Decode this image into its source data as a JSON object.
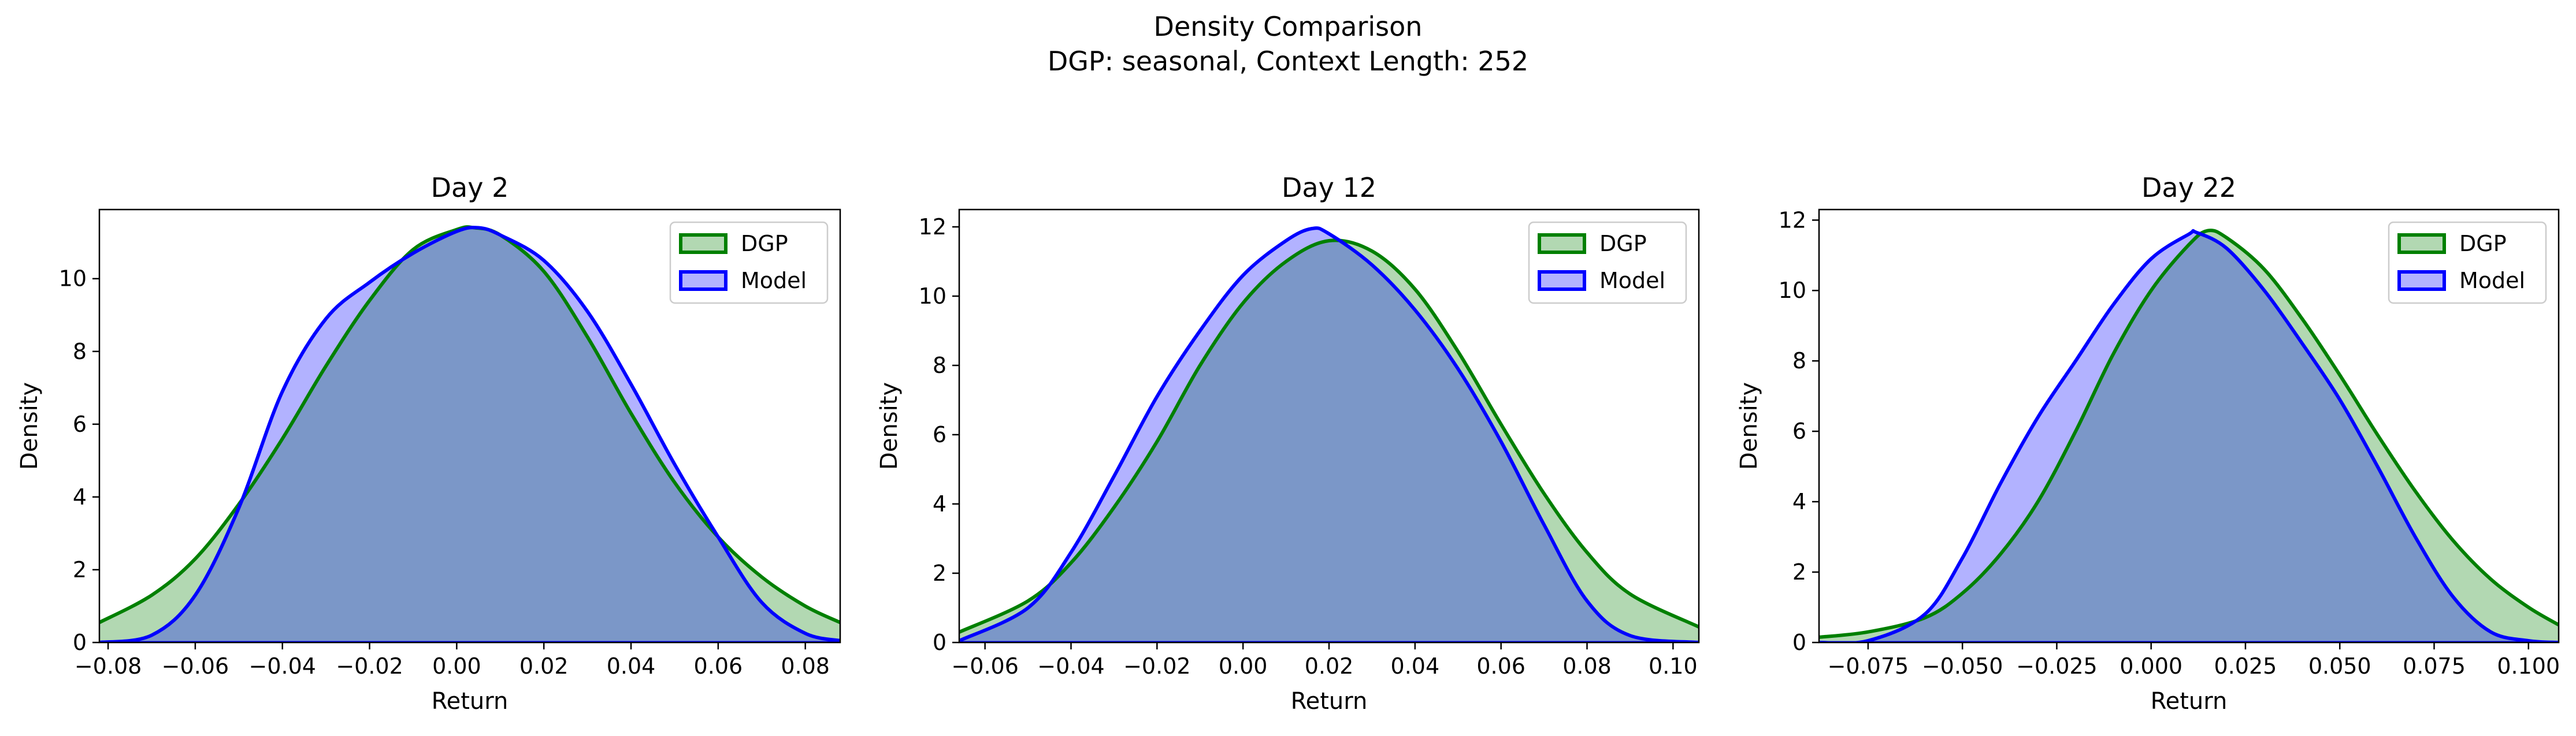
{
  "figure": {
    "title": "Density Comparison",
    "subtitle": "DGP: seasonal, Context Length: 252"
  },
  "colors": {
    "dgp_line": "#008000",
    "dgp_fill": "#b2d8b2",
    "model_line": "#0000ff",
    "model_fill": "#b2b2ff",
    "overlap_fill": "#7b97c8",
    "overlap_edge": "#0f4f6e"
  },
  "chart_data": [
    {
      "type": "area",
      "title": "Day 2",
      "xlabel": "Return",
      "ylabel": "Density",
      "xlim": [
        -0.082,
        0.088
      ],
      "ylim": [
        0,
        11.9
      ],
      "xticks": [
        -0.08,
        -0.06,
        -0.04,
        -0.02,
        0.0,
        0.02,
        0.04,
        0.06,
        0.08
      ],
      "xtick_labels": [
        "−0.08",
        "−0.06",
        "−0.04",
        "−0.02",
        "0.00",
        "0.02",
        "0.04",
        "0.06",
        "0.08"
      ],
      "yticks": [
        0,
        2,
        4,
        6,
        8,
        10
      ],
      "ytick_labels": [
        "0",
        "2",
        "4",
        "6",
        "8",
        "10"
      ],
      "legend": [
        "DGP",
        "Model"
      ],
      "legend_loc": "upper right",
      "series": [
        {
          "name": "DGP",
          "x": [
            -0.082,
            -0.07,
            -0.06,
            -0.05,
            -0.04,
            -0.03,
            -0.02,
            -0.01,
            0.0,
            0.004,
            0.01,
            0.02,
            0.03,
            0.04,
            0.05,
            0.06,
            0.07,
            0.08,
            0.088
          ],
          "y": [
            0.55,
            1.3,
            2.3,
            3.8,
            5.6,
            7.6,
            9.4,
            10.8,
            11.35,
            11.4,
            11.2,
            10.2,
            8.4,
            6.3,
            4.4,
            2.9,
            1.8,
            1.0,
            0.55
          ]
        },
        {
          "name": "Model",
          "x": [
            -0.082,
            -0.07,
            -0.06,
            -0.05,
            -0.04,
            -0.03,
            -0.02,
            -0.01,
            0.0,
            0.005,
            0.01,
            0.02,
            0.03,
            0.04,
            0.05,
            0.06,
            0.07,
            0.08,
            0.088
          ],
          "y": [
            0.0,
            0.2,
            1.3,
            3.7,
            6.9,
            8.9,
            9.9,
            10.7,
            11.3,
            11.4,
            11.2,
            10.5,
            9.1,
            7.1,
            4.9,
            2.9,
            1.1,
            0.25,
            0.05
          ]
        }
      ]
    },
    {
      "type": "area",
      "title": "Day 12",
      "xlabel": "Return",
      "ylabel": "Density",
      "xlim": [
        -0.066,
        0.106
      ],
      "ylim": [
        0,
        12.5
      ],
      "xticks": [
        -0.06,
        -0.04,
        -0.02,
        0.0,
        0.02,
        0.04,
        0.06,
        0.08,
        0.1
      ],
      "xtick_labels": [
        "−0.06",
        "−0.04",
        "−0.02",
        "0.00",
        "0.02",
        "0.04",
        "0.06",
        "0.08",
        "0.10"
      ],
      "yticks": [
        0,
        2,
        4,
        6,
        8,
        10,
        12
      ],
      "ytick_labels": [
        "0",
        "2",
        "4",
        "6",
        "8",
        "10",
        "12"
      ],
      "legend": [
        "DGP",
        "Model"
      ],
      "legend_loc": "upper right",
      "series": [
        {
          "name": "DGP",
          "x": [
            -0.066,
            -0.05,
            -0.04,
            -0.03,
            -0.02,
            -0.01,
            0.0,
            0.01,
            0.02,
            0.03,
            0.04,
            0.05,
            0.06,
            0.07,
            0.08,
            0.09,
            0.106
          ],
          "y": [
            0.3,
            1.2,
            2.3,
            3.9,
            5.8,
            8.0,
            9.8,
            11.0,
            11.6,
            11.3,
            10.2,
            8.4,
            6.3,
            4.3,
            2.6,
            1.4,
            0.45
          ]
        },
        {
          "name": "Model",
          "x": [
            -0.066,
            -0.05,
            -0.04,
            -0.03,
            -0.02,
            -0.01,
            0.0,
            0.01,
            0.016,
            0.02,
            0.03,
            0.04,
            0.05,
            0.06,
            0.07,
            0.08,
            0.09,
            0.106
          ],
          "y": [
            0.05,
            1.0,
            2.6,
            4.8,
            7.1,
            9.0,
            10.6,
            11.6,
            11.95,
            11.8,
            10.9,
            9.6,
            7.9,
            5.8,
            3.4,
            1.2,
            0.2,
            0.0
          ]
        }
      ]
    },
    {
      "type": "area",
      "title": "Day 22",
      "xlabel": "Return",
      "ylabel": "Density",
      "xlim": [
        -0.088,
        0.108
      ],
      "ylim": [
        0,
        12.3
      ],
      "xticks": [
        -0.075,
        -0.05,
        -0.025,
        0.0,
        0.025,
        0.05,
        0.075,
        0.1
      ],
      "xtick_labels": [
        "−0.075",
        "−0.050",
        "−0.025",
        "0.000",
        "0.025",
        "0.050",
        "0.075",
        "0.100"
      ],
      "yticks": [
        0,
        2,
        4,
        6,
        8,
        10,
        12
      ],
      "ytick_labels": [
        "0",
        "2",
        "4",
        "6",
        "8",
        "10",
        "12"
      ],
      "legend": [
        "DGP",
        "Model"
      ],
      "legend_loc": "upper right",
      "series": [
        {
          "name": "DGP",
          "x": [
            -0.088,
            -0.075,
            -0.06,
            -0.05,
            -0.04,
            -0.03,
            -0.02,
            -0.01,
            0.0,
            0.01,
            0.015,
            0.02,
            0.03,
            0.04,
            0.05,
            0.06,
            0.07,
            0.08,
            0.09,
            0.1,
            0.108
          ],
          "y": [
            0.15,
            0.3,
            0.7,
            1.4,
            2.5,
            4.0,
            6.0,
            8.2,
            10.0,
            11.3,
            11.7,
            11.5,
            10.6,
            9.2,
            7.6,
            5.9,
            4.3,
            2.9,
            1.8,
            1.0,
            0.5
          ]
        },
        {
          "name": "Model",
          "x": [
            -0.088,
            -0.075,
            -0.06,
            -0.05,
            -0.04,
            -0.03,
            -0.02,
            -0.01,
            0.0,
            0.01,
            0.012,
            0.02,
            0.03,
            0.04,
            0.05,
            0.06,
            0.07,
            0.08,
            0.09,
            0.1,
            0.108
          ],
          "y": [
            0.0,
            0.05,
            0.8,
            2.4,
            4.5,
            6.4,
            8.0,
            9.6,
            10.9,
            11.6,
            11.65,
            11.2,
            10.0,
            8.5,
            6.9,
            5.0,
            3.0,
            1.3,
            0.3,
            0.05,
            0.0
          ]
        }
      ]
    }
  ]
}
